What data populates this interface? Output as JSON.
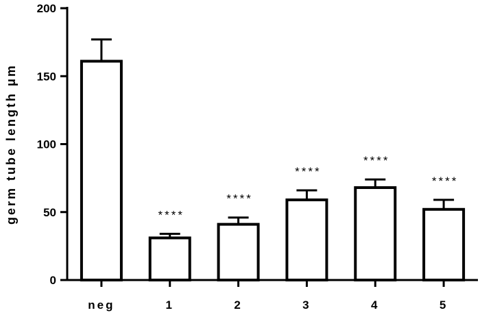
{
  "chart_data": {
    "type": "bar",
    "title": "",
    "xlabel": "",
    "ylabel": "germ tube length μm",
    "ylim": [
      0,
      200
    ],
    "yticks": [
      0,
      50,
      100,
      150,
      200
    ],
    "categories": [
      "neg",
      "1",
      "2",
      "3",
      "4",
      "5"
    ],
    "values": [
      161,
      31,
      41,
      59,
      68,
      52
    ],
    "errors": [
      16,
      3,
      5,
      7,
      6,
      7
    ],
    "significance": [
      "",
      "****",
      "****",
      "****",
      "****",
      "****"
    ],
    "grid": false,
    "legend": "none",
    "bar_fill": "#ffffff",
    "bar_stroke": "#000000"
  }
}
